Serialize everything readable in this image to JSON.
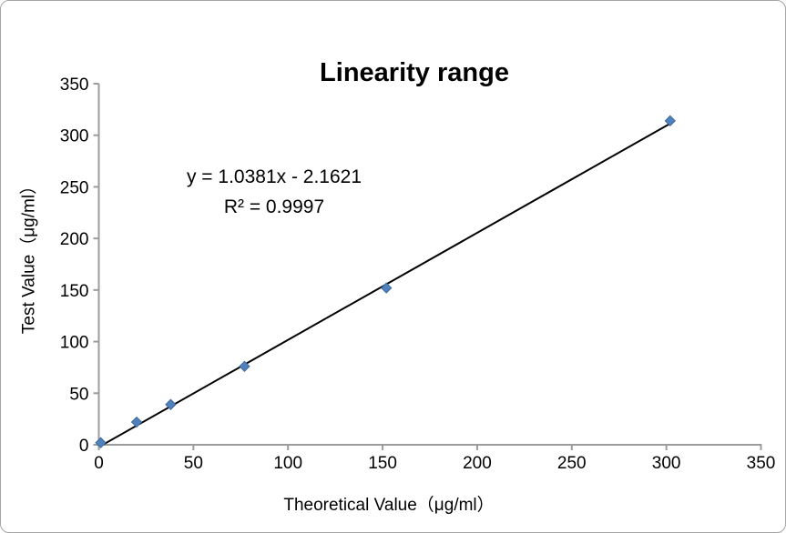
{
  "chart": {
    "title": "Linearity range",
    "equation_line1": "y = 1.0381x - 2.1621",
    "equation_line2": "R² = 0.9997",
    "xlabel": "Theoretical Value（μg/ml）",
    "ylabel": "Test Value（μg/ml）"
  },
  "chart_data": {
    "type": "scatter",
    "title": "Linearity range",
    "xlabel": "Theoretical Value（μg/ml）",
    "ylabel": "Test Value（μg/ml）",
    "annotations": [
      "y = 1.0381x - 2.1621",
      "R² = 0.9997"
    ],
    "xlim": [
      0,
      350
    ],
    "ylim": [
      0,
      350
    ],
    "x_ticks": [
      0,
      50,
      100,
      150,
      200,
      250,
      300,
      350
    ],
    "y_ticks": [
      0,
      50,
      100,
      150,
      200,
      250,
      300,
      350
    ],
    "grid": false,
    "legend": null,
    "points": [
      {
        "x": 1,
        "y": 2
      },
      {
        "x": 20,
        "y": 22
      },
      {
        "x": 38,
        "y": 39
      },
      {
        "x": 77,
        "y": 76
      },
      {
        "x": 152,
        "y": 152
      },
      {
        "x": 302,
        "y": 314
      }
    ],
    "trendline": {
      "slope": 1.0381,
      "intercept": -2.1621,
      "x_start": 2,
      "x_end": 302,
      "color": "#000000"
    },
    "marker_color": "#4f81bd",
    "marker_border_color": "#3f6a9d",
    "axis_color": "#9c9c9c"
  }
}
